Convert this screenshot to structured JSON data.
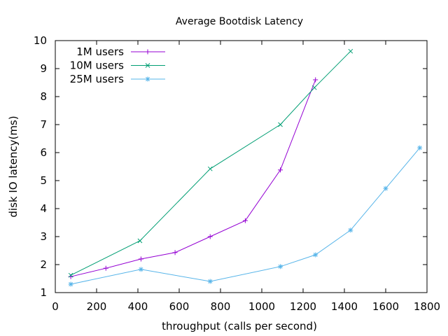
{
  "chart_data": {
    "type": "line",
    "title": "Average Bootdisk Latency",
    "xlabel": "throughput (calls per second)",
    "ylabel": "disk IO latency(ms)",
    "xlim": [
      0,
      1800
    ],
    "ylim": [
      1,
      10
    ],
    "xticks": [
      0,
      200,
      400,
      600,
      800,
      1000,
      1200,
      1400,
      1600,
      1800
    ],
    "yticks": [
      1,
      2,
      3,
      4,
      5,
      6,
      7,
      8,
      9,
      10
    ],
    "grid": false,
    "legend_position": "top-left",
    "series": [
      {
        "name": "1M users",
        "color": "#9400d3",
        "marker": "plus",
        "x": [
          75,
          245,
          415,
          580,
          750,
          920,
          1090,
          1260
        ],
        "y": [
          1.57,
          1.87,
          2.2,
          2.43,
          3.0,
          3.57,
          5.38,
          8.6
        ]
      },
      {
        "name": "10M users",
        "color": "#009e73",
        "marker": "cross",
        "x": [
          75,
          410,
          750,
          1090,
          1255,
          1430
        ],
        "y": [
          1.62,
          2.85,
          5.42,
          7.0,
          8.32,
          9.62
        ]
      },
      {
        "name": "25M users",
        "color": "#56b4e9",
        "marker": "star",
        "x": [
          75,
          415,
          750,
          1090,
          1260,
          1430,
          1600,
          1765
        ],
        "y": [
          1.3,
          1.83,
          1.4,
          1.93,
          2.35,
          3.23,
          4.72,
          6.17
        ]
      }
    ]
  }
}
